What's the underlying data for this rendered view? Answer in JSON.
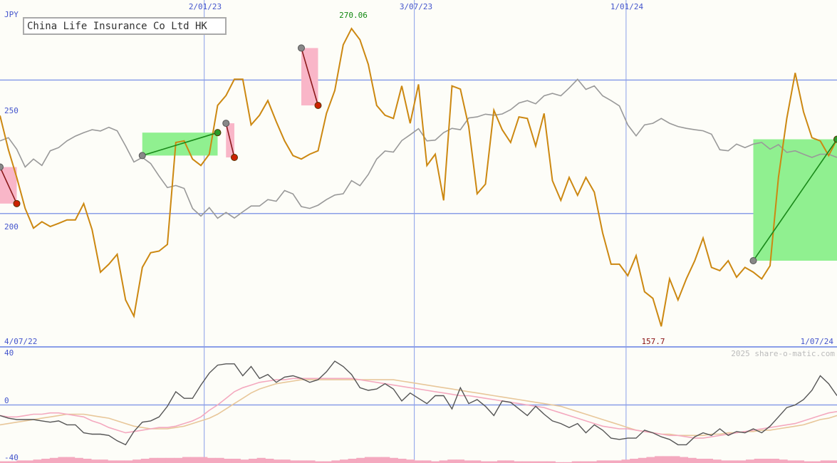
{
  "colors": {
    "background": "#fdfdf8",
    "grid": "#8a9ee8",
    "price": "#cc8811",
    "index": "#999999",
    "gain_fill": "#90f090",
    "loss_fill": "#f9b6c8",
    "gain_line": "#1a8a1a",
    "loss_line": "#8b1a1a",
    "osc_main": "#555555",
    "osc_pink": "#f4a9bf",
    "osc_tan": "#e8c79a",
    "volume": "#f4a9bf",
    "axis_text": "#4455cc",
    "high_text": "#118811",
    "low_text": "#881111"
  },
  "chart_data": [
    {
      "type": "line",
      "title": "China Life Insurance Co Ltd HK",
      "ylabel": "JPY",
      "ylim": [
        150,
        280
      ],
      "y_ticks": [
        {
          "value": 200,
          "label": "200"
        },
        {
          "value": 250,
          "label": "250"
        }
      ],
      "x_ticks": [
        {
          "label": "2/01/23",
          "x": 0.244
        },
        {
          "label": "3/07/23",
          "x": 0.495
        },
        {
          "label": "1/01/24",
          "x": 0.748
        }
      ],
      "start_label": "4/07/22",
      "end_label": "1/07/24",
      "high_label": "270.06",
      "low_label": "157.7",
      "series": [
        {
          "key": "price",
          "values": [
            236.7,
            223.9,
            213.5,
            201.9,
            194.5,
            196.9,
            195.1,
            196.3,
            197.6,
            197.6,
            203.7,
            193.9,
            178.0,
            181.0,
            184.7,
            167.6,
            161.5,
            179.8,
            185.3,
            185.9,
            188.4,
            226.6,
            227.2,
            220.4,
            218.0,
            222.2,
            240.5,
            244.2,
            250.3,
            250.3,
            233.2,
            236.8,
            242.3,
            234.4,
            227.2,
            221.7,
            220.4,
            222.2,
            223.5,
            237.5,
            246.1,
            263.2,
            269.3,
            265.1,
            255.9,
            240.5,
            236.8,
            235.6,
            247.8,
            233.8,
            248.4,
            218.0,
            222.2,
            204.9,
            247.8,
            246.6,
            232.6,
            207.4,
            211.0,
            238.7,
            231.4,
            226.6,
            236.2,
            235.6,
            225.3,
            237.5,
            212.3,
            204.9,
            213.5,
            206.8,
            213.5,
            208.0,
            192.7,
            181.0,
            181.0,
            176.7,
            184.2,
            170.7,
            168.2,
            157.7,
            175.5,
            167.6,
            175.5,
            182.3,
            190.8,
            179.8,
            178.6,
            182.3,
            176.1,
            179.8,
            178.0,
            175.5,
            180.4,
            213.5,
            235.6,
            252.7,
            238.1,
            228.4,
            227.2,
            221.7,
            227.8
          ]
        },
        {
          "key": "index",
          "values": [
            227.2,
            228.4,
            224.1,
            217.4,
            220.4,
            218.0,
            223.5,
            224.7,
            227.2,
            229.0,
            230.3,
            231.4,
            230.9,
            232.3,
            231.0,
            225.3,
            219.3,
            221.0,
            218.7,
            214.0,
            209.7,
            210.5,
            209.4,
            201.9,
            199.0,
            202.2,
            198.2,
            200.4,
            198.3,
            200.6,
            202.8,
            202.8,
            205.2,
            204.6,
            208.6,
            207.3,
            202.6,
            201.9,
            203.1,
            205.2,
            206.9,
            207.4,
            212.3,
            210.4,
            214.6,
            220.4,
            223.4,
            223.0,
            227.3,
            229.5,
            231.8,
            227.2,
            227.5,
            230.3,
            231.9,
            231.4,
            235.8,
            236.2,
            237.2,
            236.8,
            237.3,
            238.9,
            241.4,
            242.3,
            241.1,
            244.1,
            245.0,
            244.1,
            247.0,
            250.3,
            246.5,
            247.8,
            244.1,
            242.3,
            240.3,
            233.2,
            229.1,
            233.2,
            233.8,
            235.6,
            233.8,
            232.6,
            231.9,
            231.4,
            231.0,
            229.7,
            223.9,
            223.5,
            226.0,
            224.7,
            226.0,
            226.6,
            224.1,
            225.8,
            222.9,
            223.5,
            222.2,
            221.0,
            222.2,
            222.2,
            221.0
          ]
        }
      ],
      "trades": [
        {
          "kind": "loss",
          "entry_index": 0,
          "exit_index": 2,
          "entry": 217.4,
          "exit": 203.7
        },
        {
          "kind": "gain",
          "entry_index": 17,
          "exit_index": 26,
          "entry": 221.7,
          "exit": 230.3
        },
        {
          "kind": "loss",
          "entry_index": 27,
          "exit_index": 28,
          "entry": 233.8,
          "exit": 221.0
        },
        {
          "kind": "loss",
          "entry_index": 36,
          "exit_index": 38,
          "entry": 262.0,
          "exit": 240.5
        },
        {
          "kind": "gain",
          "entry_index": 90,
          "exit_index": 100,
          "entry": 182.3,
          "exit": 227.8
        }
      ]
    },
    {
      "type": "line",
      "ylim": [
        -40,
        40
      ],
      "y_ticks": [
        {
          "value": 40,
          "label": "40"
        },
        {
          "value": 0,
          "label": "0"
        },
        {
          "value": -40,
          "label": "-40"
        }
      ],
      "series": [
        {
          "key": "osc_main",
          "values": [
            -8,
            -10,
            -11,
            -11,
            -11,
            -12,
            -13,
            -12,
            -15,
            -15,
            -21,
            -22,
            -22,
            -23,
            -27,
            -30,
            -20,
            -13,
            -12,
            -9,
            -1,
            10,
            5,
            5,
            15,
            24,
            30,
            31,
            31,
            22,
            29,
            20,
            23,
            17,
            21,
            22,
            20,
            17,
            19,
            25,
            33,
            29,
            23,
            13,
            11,
            12,
            16,
            12,
            3,
            9,
            5,
            1,
            7,
            7,
            -3,
            13,
            1,
            4,
            -1,
            -8,
            3,
            2,
            -3,
            -8,
            -1,
            -7,
            -12,
            -14,
            -17,
            -14,
            -21,
            -15,
            -19,
            -25,
            -26,
            -25,
            -25,
            -19,
            -21,
            -24,
            -26,
            -30,
            -30,
            -24,
            -21,
            -23,
            -18,
            -23,
            -20,
            -21,
            -18,
            -21,
            -16,
            -9,
            -2,
            0,
            4,
            11,
            22,
            16,
            7
          ]
        },
        {
          "key": "osc_pink",
          "values": [
            -8,
            -9,
            -9,
            -8,
            -7,
            -7,
            -6,
            -6,
            -7,
            -8,
            -9,
            -12,
            -14,
            -17,
            -19,
            -21,
            -20,
            -19,
            -18,
            -17,
            -17,
            -16,
            -14,
            -12,
            -9,
            -4,
            0,
            5,
            10,
            13,
            15,
            17,
            18,
            19,
            19,
            20,
            20,
            20,
            20,
            20,
            20,
            20,
            20,
            19,
            18,
            17,
            16,
            15,
            14,
            13,
            12,
            11,
            10,
            9,
            8,
            7,
            7,
            6,
            5,
            4,
            3,
            2,
            1,
            0,
            -1,
            -2,
            -4,
            -6,
            -8,
            -10,
            -12,
            -14,
            -16,
            -17,
            -18,
            -18,
            -19,
            -20,
            -21,
            -22,
            -23,
            -23,
            -24,
            -25,
            -25,
            -24,
            -23,
            -22,
            -21,
            -20,
            -19,
            -18,
            -17,
            -16,
            -15,
            -14,
            -12,
            -10,
            -8,
            -6,
            -5
          ]
        },
        {
          "key": "osc_tan",
          "values": [
            -15,
            -14,
            -13,
            -12,
            -11,
            -10,
            -9,
            -8,
            -7,
            -7,
            -7,
            -8,
            -9,
            -10,
            -12,
            -14,
            -16,
            -17,
            -18,
            -18,
            -18,
            -17,
            -16,
            -14,
            -12,
            -10,
            -7,
            -3,
            1,
            5,
            9,
            12,
            14,
            16,
            17,
            18,
            19,
            19,
            19,
            19,
            19,
            19,
            19,
            19,
            19,
            19,
            19,
            19,
            18,
            17,
            16,
            15,
            14,
            13,
            12,
            11,
            10,
            9,
            8,
            7,
            6,
            5,
            4,
            3,
            2,
            1,
            0,
            -1,
            -3,
            -5,
            -7,
            -9,
            -11,
            -13,
            -15,
            -17,
            -19,
            -20,
            -21,
            -22,
            -22,
            -23,
            -23,
            -23,
            -23,
            -22,
            -22,
            -21,
            -21,
            -20,
            -20,
            -19,
            -19,
            -18,
            -17,
            -16,
            -15,
            -13,
            -11,
            -10,
            -8
          ]
        }
      ],
      "volume": [
        2,
        2,
        3,
        3,
        4,
        5,
        6,
        7,
        7,
        6,
        5,
        4,
        4,
        3,
        3,
        3,
        4,
        5,
        6,
        6,
        6,
        6,
        7,
        7,
        7,
        6,
        6,
        5,
        5,
        4,
        5,
        6,
        5,
        4,
        4,
        3,
        3,
        3,
        2,
        2,
        3,
        4,
        5,
        6,
        7,
        7,
        7,
        6,
        5,
        4,
        3,
        3,
        2,
        3,
        4,
        4,
        3,
        3,
        2,
        2,
        3,
        3,
        2,
        2,
        2,
        2,
        2,
        1,
        1,
        2,
        2,
        2,
        3,
        3,
        3,
        4,
        5,
        6,
        7,
        8,
        8,
        8,
        7,
        6,
        5,
        5,
        4,
        3,
        3,
        3,
        4,
        5,
        5,
        5,
        4,
        3,
        3,
        2,
        2,
        3,
        3
      ]
    }
  ],
  "watermark": "2025 share-o-matic.com"
}
